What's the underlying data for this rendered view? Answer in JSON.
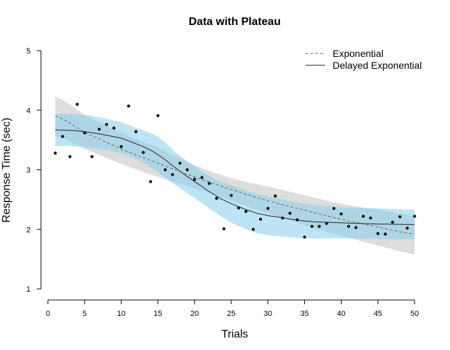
{
  "chart_data": {
    "type": "scatter",
    "title": "Data with Plateau",
    "xlabel": "Trials",
    "ylabel": "Response Time (sec)",
    "xlim": [
      0,
      50
    ],
    "ylim": [
      1,
      5
    ],
    "xticks": [
      0,
      5,
      10,
      15,
      20,
      25,
      30,
      35,
      40,
      45,
      50
    ],
    "yticks": [
      1,
      2,
      3,
      4,
      5
    ],
    "grid": false,
    "legend_position": "top-right",
    "legend": [
      {
        "label": "Exponential",
        "style": "dashed"
      },
      {
        "label": "Delayed Exponential",
        "style": "solid"
      }
    ],
    "points": {
      "x": [
        1,
        2,
        3,
        4,
        5,
        6,
        7,
        8,
        9,
        10,
        11,
        12,
        13,
        14,
        15,
        16,
        17,
        18,
        19,
        20,
        21,
        22,
        23,
        24,
        25,
        26,
        27,
        28,
        29,
        30,
        31,
        32,
        33,
        34,
        35,
        36,
        37,
        38,
        39,
        40,
        41,
        42,
        43,
        44,
        45,
        46,
        47,
        48,
        49,
        50
      ],
      "y": [
        3.28,
        3.56,
        3.22,
        4.1,
        3.62,
        3.22,
        3.68,
        3.76,
        3.7,
        3.39,
        4.07,
        3.64,
        3.29,
        2.8,
        3.91,
        3.0,
        2.92,
        3.11,
        3.0,
        2.84,
        2.87,
        2.77,
        2.52,
        2.01,
        2.57,
        2.36,
        2.3,
        2.0,
        2.17,
        2.35,
        2.56,
        2.19,
        2.27,
        2.16,
        1.87,
        2.05,
        2.05,
        2.1,
        2.35,
        2.26,
        2.05,
        2.03,
        2.22,
        2.19,
        1.93,
        1.92,
        2.12,
        2.21,
        2.02,
        2.22
      ]
    },
    "series": [
      {
        "name": "Exponential",
        "x": [
          1,
          5,
          10,
          15,
          20,
          25,
          30,
          35,
          40,
          45,
          50
        ],
        "y": [
          3.9,
          3.63,
          3.35,
          3.11,
          2.88,
          2.67,
          2.48,
          2.32,
          2.17,
          2.04,
          1.92
        ],
        "band_lower": [
          3.57,
          3.35,
          3.1,
          2.88,
          2.69,
          2.48,
          2.27,
          2.07,
          1.89,
          1.73,
          1.58
        ],
        "band_upper": [
          4.23,
          3.92,
          3.62,
          3.37,
          3.08,
          2.86,
          2.72,
          2.57,
          2.43,
          2.33,
          2.23
        ],
        "band_color": "#d9d9d9",
        "line_color": "#666666"
      },
      {
        "name": "Delayed Exponential",
        "x": [
          1,
          5,
          10,
          13,
          15,
          18,
          20,
          23,
          25,
          28,
          30,
          35,
          40,
          45,
          50
        ],
        "y": [
          3.67,
          3.64,
          3.53,
          3.39,
          3.25,
          2.98,
          2.8,
          2.56,
          2.43,
          2.29,
          2.23,
          2.14,
          2.11,
          2.09,
          2.08
        ],
        "band_lower": [
          3.4,
          3.38,
          3.28,
          3.12,
          2.95,
          2.7,
          2.52,
          2.27,
          2.11,
          1.96,
          1.9,
          1.85,
          1.85,
          1.84,
          1.83
        ],
        "band_upper": [
          3.94,
          3.92,
          3.8,
          3.66,
          3.55,
          3.24,
          3.05,
          2.83,
          2.74,
          2.61,
          2.55,
          2.43,
          2.37,
          2.35,
          2.33
        ],
        "band_color": "#87ceeb",
        "line_color": "#222222"
      }
    ]
  }
}
